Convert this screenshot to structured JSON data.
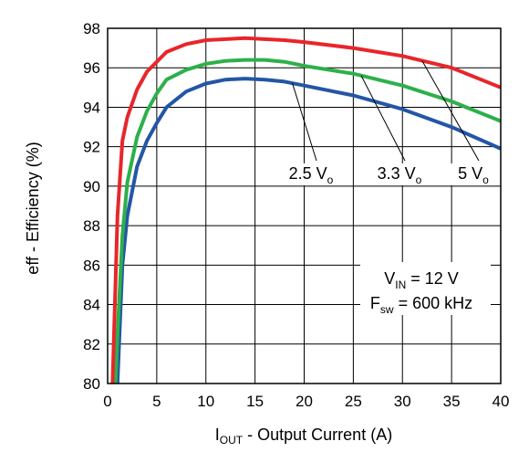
{
  "chart_data": {
    "type": "line",
    "xlabel_prefix": "I",
    "xlabel_sub": "OUT",
    "xlabel_rest": " - Output Current (A)",
    "ylabel": "eff - Efficiency (%)",
    "xlim": [
      0,
      40
    ],
    "ylim": [
      80,
      98
    ],
    "xticks": [
      0,
      5,
      10,
      15,
      20,
      25,
      30,
      35,
      40
    ],
    "yticks": [
      80,
      82,
      84,
      86,
      88,
      90,
      92,
      94,
      96,
      98
    ],
    "grid": true,
    "series": [
      {
        "name_main": "5 V",
        "name_sub": "o",
        "color": "#e8262a",
        "x": [
          0.5,
          1,
          1.5,
          2,
          3,
          4,
          5,
          6,
          8,
          10,
          12,
          14,
          16,
          18,
          20,
          25,
          30,
          35,
          40
        ],
        "y": [
          80.0,
          88.5,
          92.3,
          93.5,
          94.9,
          95.8,
          96.3,
          96.8,
          97.2,
          97.4,
          97.45,
          97.5,
          97.45,
          97.4,
          97.3,
          97.0,
          96.6,
          96.0,
          95.0
        ]
      },
      {
        "name_main": "3.3 V",
        "name_sub": "o",
        "color": "#2db04b",
        "x": [
          0.8,
          1,
          1.5,
          2,
          3,
          4,
          5,
          6,
          8,
          10,
          12,
          14,
          16,
          18,
          20,
          25,
          30,
          35,
          40
        ],
        "y": [
          80.0,
          82.5,
          87.5,
          90.2,
          92.5,
          93.8,
          94.7,
          95.4,
          95.9,
          96.2,
          96.35,
          96.4,
          96.4,
          96.3,
          96.1,
          95.7,
          95.1,
          94.3,
          93.3
        ]
      },
      {
        "name_main": "2.5 V",
        "name_sub": "o",
        "color": "#2456a6",
        "x": [
          1.0,
          1.5,
          2,
          3,
          4,
          5,
          6,
          8,
          10,
          12,
          14,
          16,
          18,
          20,
          25,
          30,
          35,
          40
        ],
        "y": [
          80.0,
          86.0,
          88.5,
          91.0,
          92.3,
          93.2,
          94.0,
          94.8,
          95.2,
          95.4,
          95.45,
          95.4,
          95.3,
          95.1,
          94.6,
          93.9,
          93.0,
          91.9
        ]
      }
    ],
    "annotation_lines": [
      {
        "main": "V",
        "sub": "IN",
        "rest": " = 12 V"
      },
      {
        "main": "F",
        "sub": "sw",
        "rest": " = 600 kHz"
      }
    ]
  }
}
